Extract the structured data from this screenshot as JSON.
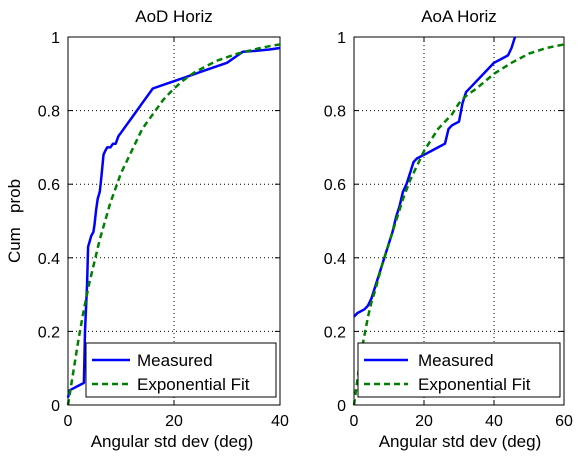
{
  "chart_data": [
    {
      "type": "line",
      "title": "AoD Horiz",
      "xlabel": "Angular std dev (deg)",
      "ylabel": "Cum   prob",
      "xlim": [
        0,
        40
      ],
      "ylim": [
        0,
        1
      ],
      "xticks": [
        "0",
        "20",
        "40"
      ],
      "yticks": [
        "0",
        "0.2",
        "0.4",
        "0.6",
        "0.8",
        "1"
      ],
      "grid": true,
      "legend_position": "bottom-right",
      "series": [
        {
          "name": "Measured",
          "color": "#0000ff",
          "style": "solid",
          "x": [
            0,
            0.3,
            3.0,
            3.2,
            3.6,
            3.8,
            4.0,
            4.4,
            4.8,
            5.0,
            5.3,
            5.6,
            6.0,
            6.3,
            6.7,
            7.0,
            7.4,
            8.0,
            8.5,
            9.0,
            9.5,
            10.0,
            11.0,
            12.0,
            13.0,
            14.0,
            15.0,
            16.0,
            18.0,
            20.0,
            22.0,
            24.0,
            26.0,
            28.0,
            30.0,
            32.0,
            33.0,
            35.0,
            38.0,
            40.0
          ],
          "y": [
            0.02,
            0.04,
            0.06,
            0.2,
            0.33,
            0.43,
            0.44,
            0.46,
            0.47,
            0.49,
            0.53,
            0.56,
            0.58,
            0.62,
            0.68,
            0.69,
            0.7,
            0.7,
            0.71,
            0.71,
            0.73,
            0.74,
            0.76,
            0.78,
            0.8,
            0.82,
            0.84,
            0.86,
            0.87,
            0.88,
            0.89,
            0.9,
            0.91,
            0.92,
            0.93,
            0.95,
            0.96,
            0.962,
            0.966,
            0.97
          ]
        },
        {
          "name": "Exponential Fit",
          "color": "#008000",
          "style": "dashed",
          "x": [
            0,
            1,
            2,
            3,
            4,
            5,
            6,
            7,
            8,
            10,
            12,
            14,
            16,
            18,
            20,
            22,
            24,
            26,
            28,
            30,
            32,
            34,
            36,
            38,
            40
          ],
          "y": [
            0.0,
            0.09,
            0.18,
            0.26,
            0.33,
            0.39,
            0.45,
            0.5,
            0.55,
            0.63,
            0.69,
            0.75,
            0.79,
            0.83,
            0.86,
            0.885,
            0.905,
            0.92,
            0.935,
            0.945,
            0.955,
            0.962,
            0.969,
            0.975,
            0.98
          ]
        }
      ]
    },
    {
      "type": "line",
      "title": "AoA Horiz",
      "xlabel": "Angular std dev (deg)",
      "ylabel": "",
      "xlim": [
        0,
        60
      ],
      "ylim": [
        0,
        1
      ],
      "xticks": [
        "0",
        "20",
        "40",
        "60"
      ],
      "yticks": [
        "0",
        "0.2",
        "0.4",
        "0.6",
        "0.8",
        "1"
      ],
      "grid": true,
      "legend_position": "bottom-right",
      "series": [
        {
          "name": "Measured",
          "color": "#0000ff",
          "style": "solid",
          "x": [
            0,
            1,
            3,
            4,
            5,
            6,
            7,
            8,
            9,
            10,
            11,
            12,
            13,
            14,
            15,
            16,
            17,
            18,
            20,
            22,
            24,
            26,
            27,
            28,
            30,
            31,
            32,
            34,
            36,
            38,
            40,
            42,
            44,
            45,
            46
          ],
          "y": [
            0.24,
            0.25,
            0.26,
            0.27,
            0.29,
            0.32,
            0.35,
            0.38,
            0.41,
            0.44,
            0.47,
            0.51,
            0.54,
            0.58,
            0.6,
            0.63,
            0.66,
            0.67,
            0.68,
            0.69,
            0.7,
            0.71,
            0.75,
            0.76,
            0.77,
            0.82,
            0.85,
            0.87,
            0.89,
            0.91,
            0.93,
            0.94,
            0.95,
            0.97,
            1.0
          ]
        },
        {
          "name": "Exponential Fit",
          "color": "#008000",
          "style": "dashed",
          "x": [
            0,
            1,
            2,
            3,
            4,
            5,
            6,
            8,
            10,
            12,
            14,
            16,
            18,
            20,
            22,
            24,
            26,
            28,
            30,
            32,
            35,
            40,
            45,
            50,
            55,
            60
          ],
          "y": [
            0.0,
            0.07,
            0.14,
            0.19,
            0.24,
            0.28,
            0.31,
            0.38,
            0.44,
            0.5,
            0.56,
            0.61,
            0.65,
            0.69,
            0.72,
            0.75,
            0.77,
            0.79,
            0.82,
            0.84,
            0.86,
            0.9,
            0.93,
            0.955,
            0.97,
            0.98
          ]
        }
      ]
    }
  ]
}
